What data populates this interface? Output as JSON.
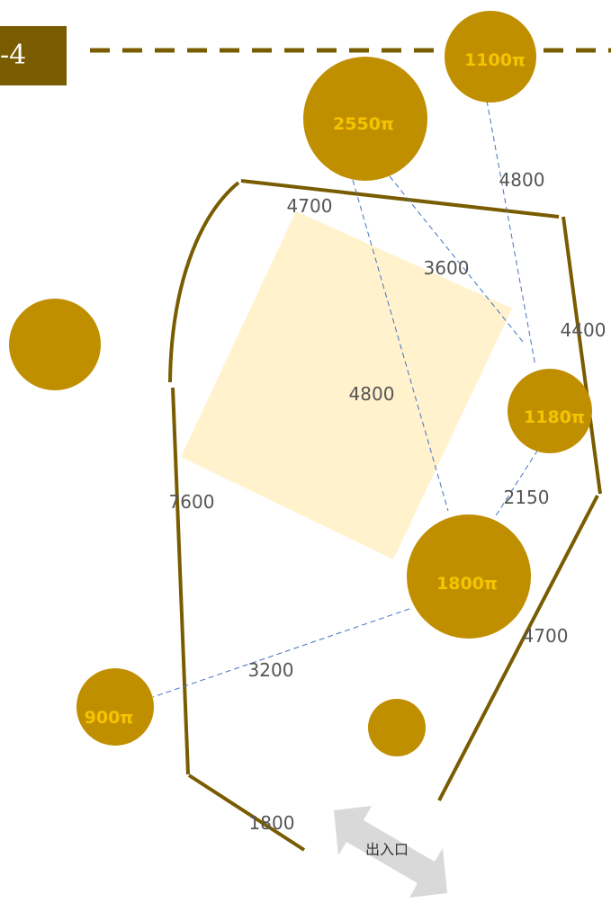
{
  "plan_label": "-4",
  "trees": [
    {
      "id": "tree-1100",
      "label": "1100π"
    },
    {
      "id": "tree-2550",
      "label": "2550π"
    },
    {
      "id": "tree-left",
      "label": ""
    },
    {
      "id": "tree-1180",
      "label": "1180π"
    },
    {
      "id": "tree-1800",
      "label": "1800π"
    },
    {
      "id": "tree-900",
      "label": "900π"
    },
    {
      "id": "tree-small",
      "label": ""
    }
  ],
  "dimensions": {
    "top_edge": "4700",
    "right_upper": "4400",
    "left_edge": "7600",
    "right_lower": "4700",
    "bottom_edge": "1800",
    "d_2550_1800": "4800",
    "d_2550_1180": "3600",
    "d_1100_1180": "4800",
    "d_1180_1800": "2150",
    "d_1800_900": "3200"
  },
  "entrance_label": "出入口",
  "colors": {
    "tree": "#c08f00",
    "boundary": "#7a5c00",
    "tree_text": "#f5c400",
    "building": "#fff2cc",
    "link": "#4472c4",
    "arrow": "#d9d9d9"
  }
}
